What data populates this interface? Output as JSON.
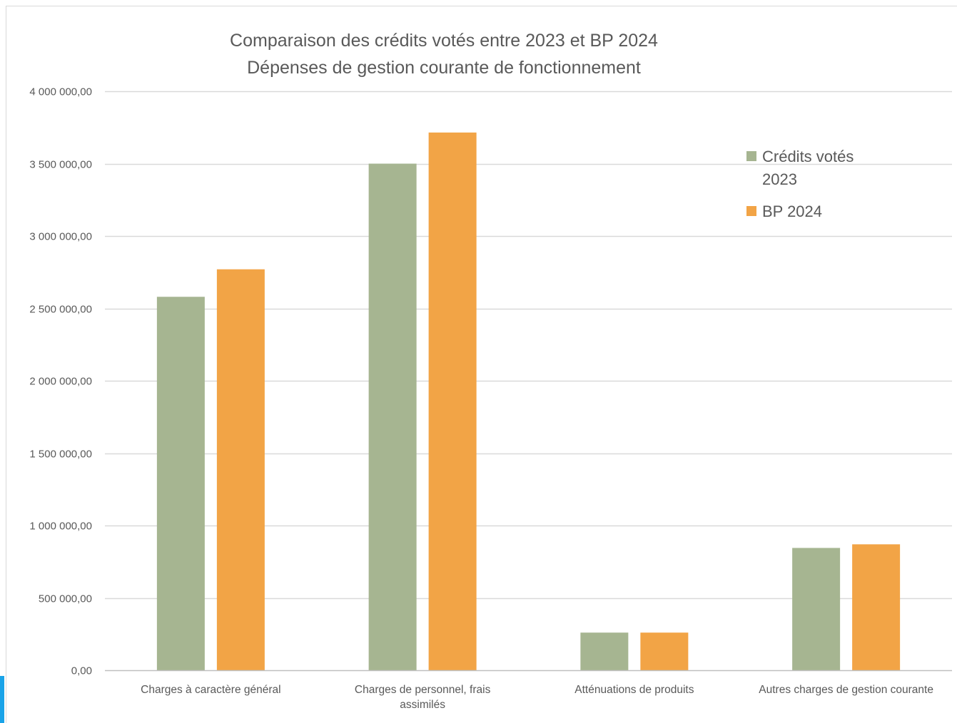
{
  "chart_data": {
    "type": "bar",
    "title": [
      "Comparaison des crédits votés entre 2023 et BP 2024",
      "Dépenses de gestion courante de fonctionnement"
    ],
    "xlabel": "",
    "ylabel": "",
    "categories": [
      [
        "Charges à caractère général"
      ],
      [
        "Charges de personnel, frais",
        "assimilés"
      ],
      [
        "Atténuations de produits"
      ],
      [
        "Autres charges de gestion courante"
      ]
    ],
    "series": [
      {
        "name": [
          "Crédits votés",
          "2023"
        ],
        "color": "#a6b591",
        "values": [
          2580000,
          3500000,
          260000,
          845000
        ]
      },
      {
        "name": [
          "BP 2024"
        ],
        "color": "#f2a446",
        "values": [
          2770000,
          3715000,
          260000,
          870000
        ]
      }
    ],
    "ylim": [
      0,
      4000000
    ],
    "y_ticks": [
      {
        "value": 0,
        "label": "0,00"
      },
      {
        "value": 500000,
        "label": "500 000,00"
      },
      {
        "value": 1000000,
        "label": "1 000 000,00"
      },
      {
        "value": 1500000,
        "label": "1 500 000,00"
      },
      {
        "value": 2000000,
        "label": "2 000 000,00"
      },
      {
        "value": 2500000,
        "label": "2 500 000,00"
      },
      {
        "value": 3000000,
        "label": "3 000 000,00"
      },
      {
        "value": 3500000,
        "label": "3 500 000,00"
      },
      {
        "value": 4000000,
        "label": "4 000 000,00"
      }
    ],
    "grid": true,
    "legend_position": "top-right",
    "colors": {
      "gridline": "#d9d9d9",
      "axis": "#bfbfbf",
      "text": "#595959",
      "frame": "#d9d9d9"
    }
  }
}
